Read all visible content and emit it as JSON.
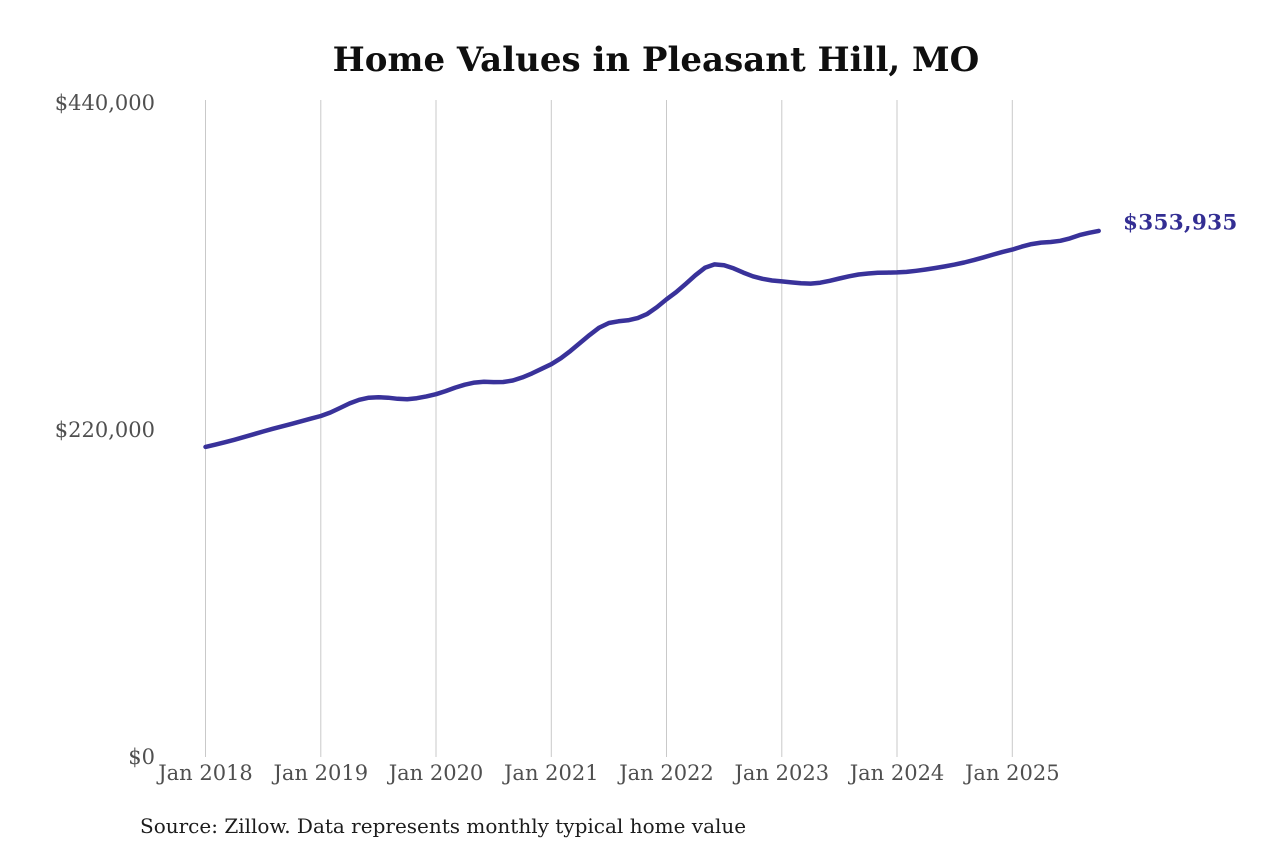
{
  "title": "Home Values in Pleasant Hill, MO",
  "end_label": "$353,935",
  "source_note": "Source: Zillow. Data represents monthly typical home value",
  "colors": {
    "line": "#39329a",
    "end_label": "#332e93",
    "grid": "#c9c9c9",
    "tick_text": "#4f4f4f",
    "title_text": "#0f0f0f",
    "source_text": "#1c1c1c"
  },
  "y_axis": {
    "ticks": [
      {
        "label": "$440,000",
        "value": 440000
      },
      {
        "label": "$220,000",
        "value": 220000
      },
      {
        "label": "$0",
        "value": 0
      }
    ]
  },
  "x_axis": {
    "ticks": [
      {
        "label": "Jan 2018",
        "month_index": 0
      },
      {
        "label": "Jan 2019",
        "month_index": 12
      },
      {
        "label": "Jan 2020",
        "month_index": 24
      },
      {
        "label": "Jan 2021",
        "month_index": 36
      },
      {
        "label": "Jan 2022",
        "month_index": 48
      },
      {
        "label": "Jan 2023",
        "month_index": 60
      },
      {
        "label": "Jan 2024",
        "month_index": 72
      },
      {
        "label": "Jan 2025",
        "month_index": 84
      }
    ]
  },
  "chart_data": {
    "type": "line",
    "title": "Home Values in Pleasant Hill, MO",
    "series_name": "Monthly typical home value (USD)",
    "start_month": "2018-01",
    "frequency": "monthly",
    "ylim": [
      0,
      440000
    ],
    "grid": "vertical-only",
    "end_value": 353935,
    "values": [
      208600,
      210100,
      211700,
      213400,
      215200,
      217100,
      219000,
      220800,
      222500,
      224200,
      225900,
      227700,
      229400,
      231800,
      234800,
      237900,
      240300,
      241700,
      242100,
      241700,
      241000,
      240700,
      241400,
      242600,
      244100,
      246200,
      248500,
      250500,
      251900,
      252400,
      252200,
      252300,
      253300,
      255400,
      258100,
      261200,
      264300,
      268300,
      273200,
      278600,
      284000,
      288900,
      292000,
      293100,
      293800,
      295300,
      298100,
      302600,
      307900,
      312700,
      318300,
      324100,
      329100,
      331400,
      330900,
      328700,
      325900,
      323400,
      321700,
      320600,
      320000,
      319300,
      318700,
      318500,
      319100,
      320400,
      321900,
      323400,
      324600,
      325300,
      325800,
      325900,
      326000,
      326400,
      327100,
      328000,
      329000,
      330100,
      331300,
      332700,
      334300,
      336100,
      338000,
      339800,
      341400,
      343400,
      345100,
      346100,
      346500,
      347300,
      348900,
      351100,
      352700,
      353935
    ]
  }
}
